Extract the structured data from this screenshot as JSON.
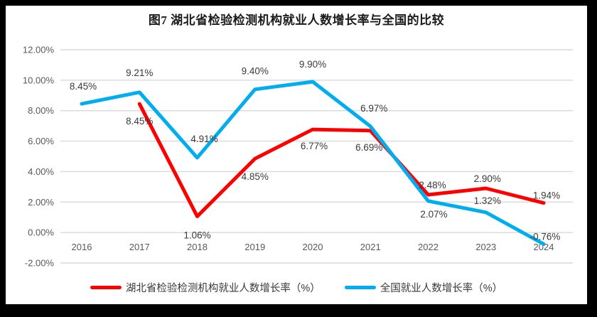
{
  "chart_data": {
    "type": "line",
    "title": "图7 湖北省检验检测机构就业人数增长率与全国的比较",
    "categories": [
      "2016",
      "2017",
      "2018",
      "2019",
      "2020",
      "2021",
      "2022",
      "2023",
      "2024"
    ],
    "series": [
      {
        "name": "湖北省检验检测机构就业人数增长率（%）",
        "color": "#FE0000",
        "values": [
          null,
          8.45,
          1.06,
          4.85,
          6.77,
          6.69,
          2.48,
          2.9,
          1.94
        ]
      },
      {
        "name": "全国就业人数增长率（%）",
        "color": "#00AEEF",
        "values": [
          8.45,
          9.21,
          4.91,
          9.4,
          9.9,
          6.97,
          2.07,
          1.32,
          -0.76
        ]
      }
    ],
    "y_axis": {
      "min": -2,
      "max": 12,
      "step": 2,
      "tick_labels": [
        "12.00%",
        "10.00%",
        "8.00%",
        "6.00%",
        "4.00%",
        "2.00%",
        "0.00%",
        "-2.00%"
      ]
    },
    "data_labels": true,
    "grid": true,
    "legend_position": "bottom"
  },
  "colors": {
    "frame": "#000000",
    "background": "#FFFFFF",
    "gridline": "#D9D9D9",
    "axis_text": "#595959",
    "data_label_text": "#3A3A3A"
  }
}
